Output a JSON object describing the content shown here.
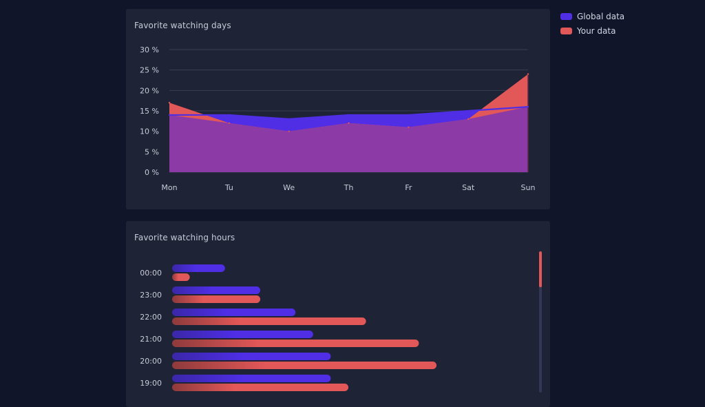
{
  "legend": {
    "items": [
      {
        "label": "Global data",
        "color": "#4f2ee6"
      },
      {
        "label": "Your data",
        "color": "#e25757"
      }
    ]
  },
  "colors": {
    "global": "#4f2ee6",
    "yours": "#e25757",
    "overlap": "#8b3aa6",
    "grid": "#3a3f55",
    "axis_text": "#c9ccd8"
  },
  "chart_data": [
    {
      "type": "area",
      "title": "Favorite watching days",
      "categories": [
        "Mon",
        "Tu",
        "We",
        "Th",
        "Fr",
        "Sat",
        "Sun"
      ],
      "ylim": [
        0,
        30
      ],
      "yticks": [
        "0 %",
        "5 %",
        "10 %",
        "15 %",
        "20 %",
        "25 %",
        "30 %"
      ],
      "grid": true,
      "series": [
        {
          "name": "Global data",
          "values": [
            14,
            14,
            13,
            14,
            14,
            15,
            16
          ]
        },
        {
          "name": "Your data",
          "values": [
            17,
            12,
            10,
            12,
            11,
            13,
            24
          ]
        }
      ]
    },
    {
      "type": "bar",
      "title": "Favorite watching hours",
      "orientation": "horizontal",
      "categories": [
        "00:00",
        "23:00",
        "22:00",
        "21:00",
        "20:00",
        "19:00"
      ],
      "xlim": [
        0,
        20
      ],
      "series": [
        {
          "name": "Global data",
          "values": [
            3,
            5,
            7,
            8,
            9,
            9
          ]
        },
        {
          "name": "Your data",
          "values": [
            1,
            5,
            11,
            14,
            15,
            10
          ]
        }
      ]
    }
  ]
}
